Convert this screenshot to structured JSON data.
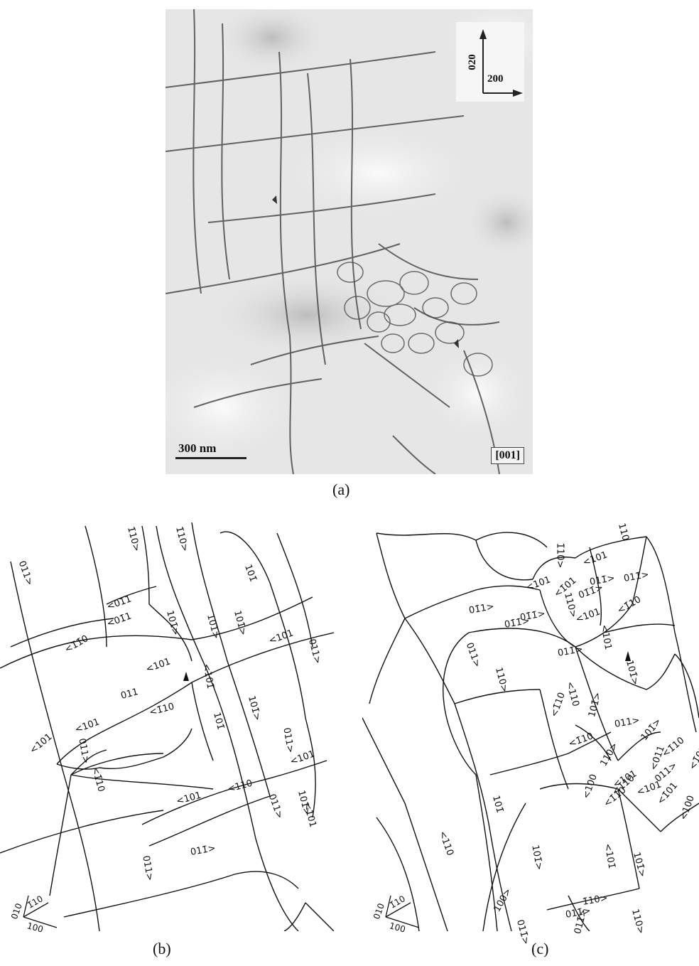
{
  "panel_a": {
    "scale_bar": "300 nm",
    "zone_axis": "[001]",
    "dir_vertical": "020",
    "dir_horizontal": "200",
    "caption": "(a)"
  },
  "panel_b": {
    "caption": "(b)",
    "axes": {
      "a1": "010",
      "a2": "1̄10",
      "a3": "100"
    },
    "labels": [
      "011>",
      "1̄10>",
      "1̄10>",
      "<01̄1",
      "<01̄1",
      "101̄",
      "101̄>",
      "101̄>",
      "101̄>",
      "<101",
      "011>",
      "<1̄1̄0",
      "<101",
      "011",
      "<101̄",
      "<101",
      "<1̄10",
      "101̄",
      "101̄>",
      "011>",
      "<101",
      "011>",
      "<101",
      "<1̄10",
      "<101",
      "<110",
      "011>",
      "101̄>",
      "<101",
      "011>",
      "011̄>"
    ]
  },
  "panel_c": {
    "caption": "(c)",
    "axes": {
      "a1": "010",
      "a2": "1̄10",
      "a3": "100"
    },
    "labels": [
      "110",
      "<101",
      "1̄10>",
      "011̄>",
      "<101",
      "01̄1̄>",
      "<1̄01",
      "011̄>",
      "01̄1>",
      "01̄1̄>",
      "<101",
      "<1̄10",
      "110>",
      "110>",
      "<101",
      "01̄1̄>",
      "011>",
      "011̄>",
      "<110",
      "101̄>",
      "<1̄10",
      "101̄>",
      "<1̄10",
      "011>",
      "110>",
      "101̄>",
      "<011",
      "011>",
      "<101",
      "<1̄10",
      "<100",
      "<1̄10",
      "<101",
      "<1̄10",
      "<1̄01",
      "<100",
      "<1̄01",
      "<110",
      "101̄",
      "101̄>",
      "<101̄",
      "101̄>",
      "100>",
      "011̄>",
      "011̄>",
      "1̄10>",
      "011̄>",
      "110>"
    ]
  }
}
